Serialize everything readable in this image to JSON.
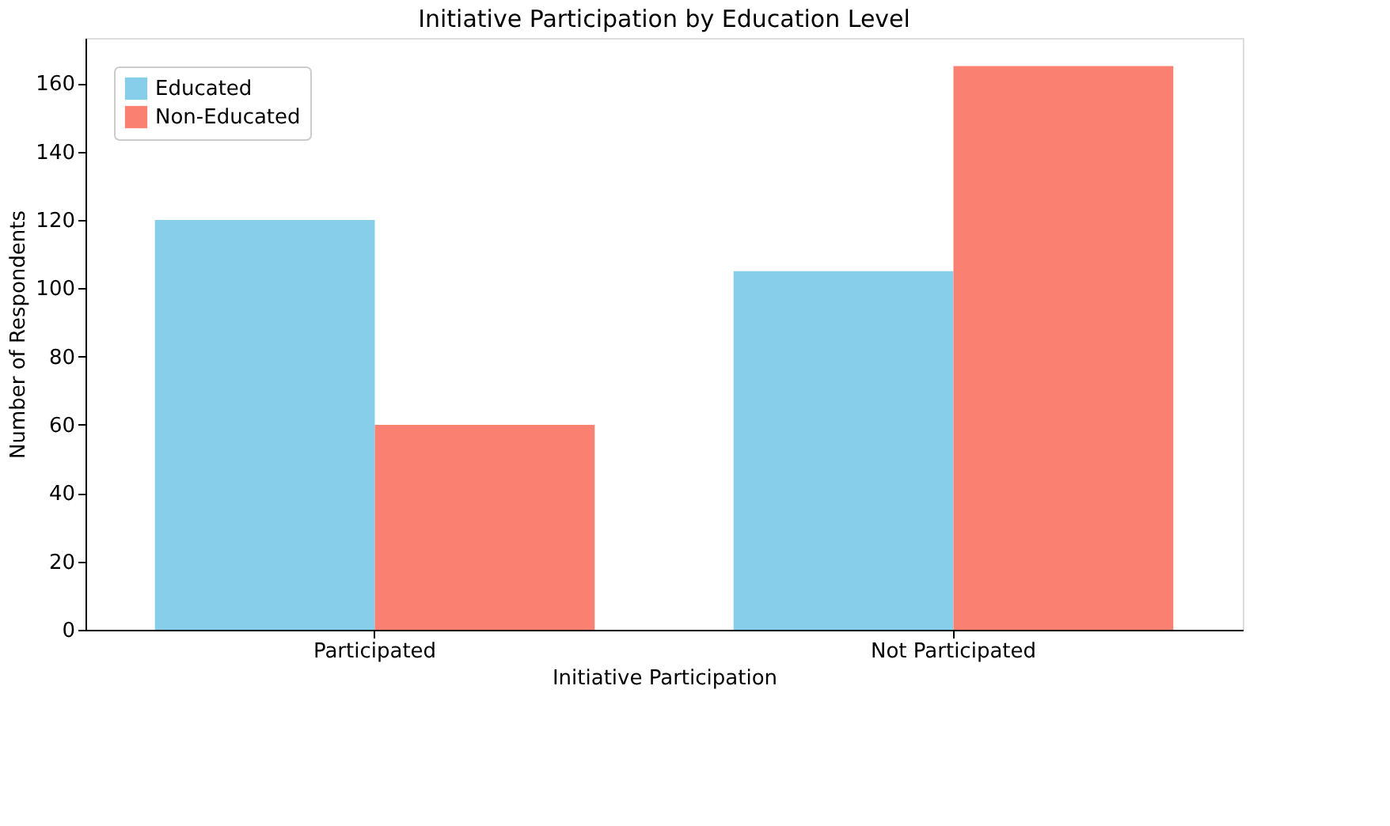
{
  "chart_data": {
    "type": "bar",
    "title": "Initiative Participation by Education Level",
    "xlabel": "Initiative Participation",
    "ylabel": "Number of Respondents",
    "categories": [
      "Participated",
      "Not Participated"
    ],
    "series": [
      {
        "name": "Educated",
        "color": "#87ceeb",
        "values": [
          120,
          105
        ]
      },
      {
        "name": "Non-Educated",
        "color": "#fa8072",
        "values": [
          60,
          165
        ]
      }
    ],
    "ylim": [
      0,
      173.25
    ],
    "yticks": [
      0,
      20,
      40,
      60,
      80,
      100,
      120,
      140,
      160
    ],
    "grid": false,
    "legend": "top left"
  }
}
